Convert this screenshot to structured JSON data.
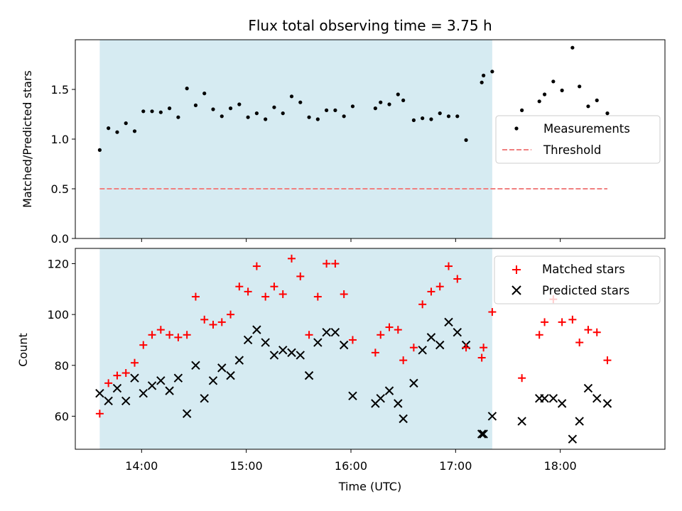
{
  "chart_data": [
    {
      "type": "scatter",
      "panel": "top",
      "title": "Flux total observing time = 3.75 h",
      "xlabel": "",
      "ylabel": "Matched/Predicted stars",
      "xlim": [
        "13:22",
        "19:00"
      ],
      "ylim": [
        0,
        2.0
      ],
      "yticks": [
        "0.0",
        "0.5",
        "1.0",
        "1.5"
      ],
      "grid": false,
      "legend": "center-right",
      "shaded_interval": [
        "13:36",
        "17:21"
      ],
      "colors": {
        "shade": "#add8e6",
        "measurements": "#000000",
        "threshold": "#f08080"
      },
      "series": [
        {
          "name": "Measurements",
          "marker": "dot",
          "x": [
            "13:36",
            "13:41",
            "13:46",
            "13:51",
            "13:56",
            "14:01",
            "14:06",
            "14:11",
            "14:16",
            "14:21",
            "14:26",
            "14:31",
            "14:36",
            "14:41",
            "14:46",
            "14:51",
            "14:56",
            "15:01",
            "15:06",
            "15:11",
            "15:16",
            "15:21",
            "15:26",
            "15:31",
            "15:36",
            "15:41",
            "15:46",
            "15:51",
            "15:56",
            "16:01",
            "16:14",
            "16:17",
            "16:22",
            "16:27",
            "16:30",
            "16:36",
            "16:41",
            "16:46",
            "16:51",
            "16:56",
            "17:01",
            "17:06",
            "17:15",
            "17:16",
            "17:21",
            "17:38",
            "17:48",
            "17:51",
            "17:56",
            "18:01",
            "18:07",
            "18:11",
            "18:16",
            "18:21",
            "18:27"
          ],
          "y": [
            0.89,
            1.11,
            1.07,
            1.16,
            1.08,
            1.28,
            1.28,
            1.27,
            1.31,
            1.22,
            1.51,
            1.34,
            1.46,
            1.3,
            1.23,
            1.31,
            1.35,
            1.22,
            1.26,
            1.2,
            1.32,
            1.26,
            1.43,
            1.37,
            1.22,
            1.2,
            1.29,
            1.29,
            1.23,
            1.33,
            1.31,
            1.37,
            1.35,
            1.45,
            1.39,
            1.19,
            1.21,
            1.2,
            1.26,
            1.23,
            1.23,
            0.99,
            1.57,
            1.64,
            1.68,
            1.29,
            1.38,
            1.45,
            1.58,
            1.49,
            1.92,
            1.53,
            1.33,
            1.39,
            1.26
          ]
        },
        {
          "name": "Threshold",
          "marker": "dashed-line",
          "x": [
            "13:36",
            "18:27"
          ],
          "y": [
            0.5,
            0.5
          ]
        }
      ]
    },
    {
      "type": "scatter",
      "panel": "bottom",
      "xlabel": "Time (UTC)",
      "ylabel": "Count",
      "xlim": [
        "13:22",
        "19:00"
      ],
      "ylim": [
        47,
        126
      ],
      "xticks": [
        "14:00",
        "15:00",
        "16:00",
        "17:00",
        "18:00"
      ],
      "yticks": [
        "60",
        "80",
        "100",
        "120"
      ],
      "grid": false,
      "legend": "upper-right",
      "shaded_interval": [
        "13:36",
        "17:21"
      ],
      "colors": {
        "shade": "#add8e6",
        "matched": "#ff0000",
        "predicted": "#000000"
      },
      "series": [
        {
          "name": "Matched stars",
          "marker": "plus",
          "x": [
            "13:36",
            "13:41",
            "13:46",
            "13:51",
            "13:56",
            "14:01",
            "14:06",
            "14:11",
            "14:16",
            "14:21",
            "14:26",
            "14:31",
            "14:36",
            "14:41",
            "14:46",
            "14:51",
            "14:56",
            "15:01",
            "15:06",
            "15:11",
            "15:16",
            "15:21",
            "15:26",
            "15:31",
            "15:36",
            "15:41",
            "15:46",
            "15:51",
            "15:56",
            "16:01",
            "16:14",
            "16:17",
            "16:22",
            "16:27",
            "16:30",
            "16:36",
            "16:41",
            "16:46",
            "16:51",
            "16:56",
            "17:01",
            "17:06",
            "17:15",
            "17:16",
            "17:21",
            "17:38",
            "17:48",
            "17:51",
            "17:56",
            "18:01",
            "18:07",
            "18:11",
            "18:16",
            "18:21",
            "18:27"
          ],
          "y": [
            61,
            73,
            76,
            77,
            81,
            88,
            92,
            94,
            92,
            91,
            92,
            107,
            98,
            96,
            97,
            100,
            111,
            109,
            119,
            107,
            111,
            108,
            122,
            115,
            92,
            107,
            120,
            120,
            108,
            90,
            85,
            92,
            95,
            94,
            82,
            87,
            104,
            109,
            111,
            119,
            114,
            87,
            83,
            87,
            101,
            75,
            92,
            97,
            106,
            97,
            98,
            89,
            94,
            93,
            82
          ]
        },
        {
          "name": "Predicted stars",
          "marker": "x",
          "x": [
            "13:36",
            "13:41",
            "13:46",
            "13:51",
            "13:56",
            "14:01",
            "14:06",
            "14:11",
            "14:16",
            "14:21",
            "14:26",
            "14:31",
            "14:36",
            "14:41",
            "14:46",
            "14:51",
            "14:56",
            "15:01",
            "15:06",
            "15:11",
            "15:16",
            "15:21",
            "15:26",
            "15:31",
            "15:36",
            "15:41",
            "15:46",
            "15:51",
            "15:56",
            "16:01",
            "16:14",
            "16:17",
            "16:22",
            "16:27",
            "16:30",
            "16:36",
            "16:41",
            "16:46",
            "16:51",
            "16:56",
            "17:01",
            "17:06",
            "17:15",
            "17:16",
            "17:21",
            "17:38",
            "17:48",
            "17:51",
            "17:56",
            "18:01",
            "18:07",
            "18:11",
            "18:16",
            "18:21",
            "18:27"
          ],
          "y": [
            69,
            66,
            71,
            66,
            75,
            69,
            72,
            74,
            70,
            75,
            61,
            80,
            67,
            74,
            79,
            76,
            82,
            90,
            94,
            89,
            84,
            86,
            85,
            84,
            76,
            89,
            93,
            93,
            88,
            68,
            65,
            67,
            70,
            65,
            59,
            73,
            86,
            91,
            88,
            97,
            93,
            88,
            53,
            53,
            60,
            58,
            67,
            67,
            67,
            65,
            51,
            58,
            71,
            67,
            65
          ]
        }
      ]
    }
  ]
}
